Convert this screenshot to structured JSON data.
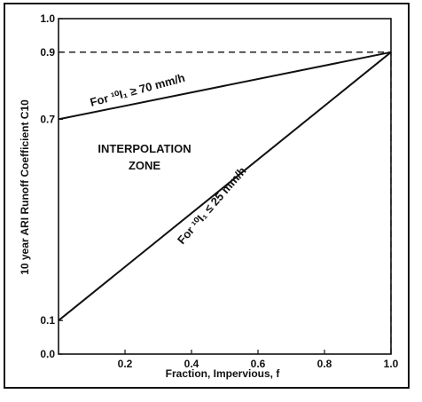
{
  "chart_data": {
    "type": "line",
    "title": "",
    "xlabel": "Fraction, Impervious, f",
    "ylabel": "10 year ARI Runoff Coefficient C10",
    "xlim": [
      0.0,
      1.0
    ],
    "ylim": [
      0.0,
      1.0
    ],
    "x_ticks": [
      0.2,
      0.4,
      0.6,
      0.8,
      1.0
    ],
    "x_tick_labels": [
      "0.2",
      "0.4",
      "0.6",
      "0.8",
      "1.0"
    ],
    "y_ticks": [
      0.0,
      0.1,
      0.7,
      0.9,
      1.0
    ],
    "y_tick_labels": [
      "0.0",
      "0.1",
      "0.7",
      "0.9",
      "1.0"
    ],
    "grid": false,
    "series": [
      {
        "name": "For 10I1 ≥ 70 mm/h",
        "x": [
          0.0,
          1.0
        ],
        "y": [
          0.7,
          0.9
        ]
      },
      {
        "name": "For 10I1 ≤ 25 mm/h",
        "x": [
          0.0,
          1.0
        ],
        "y": [
          0.1,
          0.9
        ]
      }
    ],
    "reference_lines": [
      {
        "x": [
          0.0,
          1.0
        ],
        "y": [
          0.9,
          0.9
        ],
        "style": "dashed"
      },
      {
        "x": [
          1.0,
          1.0
        ],
        "y": [
          0.0,
          0.9
        ],
        "style": "dashed"
      }
    ],
    "annotations": {
      "zone_line1": "INTERPOLATION",
      "zone_line2": "ZONE",
      "upper_label": "For ¹⁰I₁ ≥ 70 mm/h",
      "lower_label": "For ¹⁰I₁ ≤ 25 mm/h"
    },
    "colors": {
      "line": "#111111",
      "background": "#ffffff"
    }
  }
}
